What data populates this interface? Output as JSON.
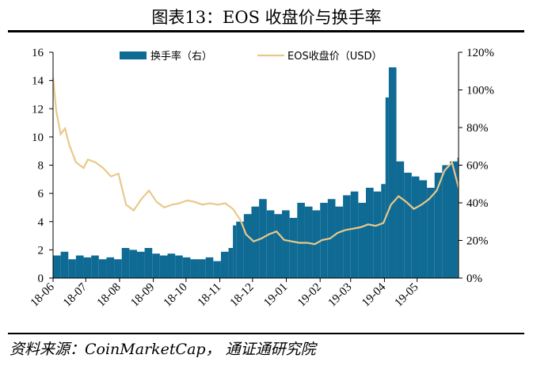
{
  "title": "图表13：EOS 收盘价与换手率",
  "source": "资料来源：CoinMarketCap， 通证通研究院",
  "colors": {
    "turnover": "#0f6a94",
    "price": "#e8c98a",
    "axis": "#000000"
  },
  "chart_data": {
    "type": "bar+line",
    "title": "图表13：EOS 收盘价与换手率",
    "x_tick_labels": [
      "18-06",
      "18-07",
      "18-08",
      "18-09",
      "18-10",
      "18-11",
      "18-12",
      "19-01",
      "19-02",
      "19-03",
      "19-04",
      "19-05"
    ],
    "x_range": [
      "2018-06-01",
      "2019-06-08"
    ],
    "y_left": {
      "min": 0,
      "max": 16,
      "ticks": [
        0,
        2,
        4,
        6,
        8,
        10,
        12,
        14,
        16
      ]
    },
    "y_right": {
      "min": 0,
      "max": 1.2,
      "ticks": [
        "0%",
        "20%",
        "40%",
        "60%",
        "80%",
        "100%",
        "120%"
      ]
    },
    "legend": {
      "placement": "top-center",
      "items": [
        "换手率（右）",
        "EOS收盘价（USD）"
      ]
    },
    "series": [
      {
        "name": "换手率（右）",
        "axis": "right",
        "type": "bar",
        "x": [
          "2018-06-01",
          "2018-06-08",
          "2018-06-15",
          "2018-06-22",
          "2018-06-29",
          "2018-07-06",
          "2018-07-13",
          "2018-07-20",
          "2018-07-27",
          "2018-08-03",
          "2018-08-10",
          "2018-08-17",
          "2018-08-24",
          "2018-08-31",
          "2018-09-07",
          "2018-09-14",
          "2018-09-21",
          "2018-09-28",
          "2018-10-05",
          "2018-10-12",
          "2018-10-19",
          "2018-10-26",
          "2018-11-02",
          "2018-11-09",
          "2018-11-13",
          "2018-11-16",
          "2018-11-23",
          "2018-11-30",
          "2018-12-07",
          "2018-12-14",
          "2018-12-21",
          "2018-12-28",
          "2019-01-04",
          "2019-01-11",
          "2019-01-18",
          "2019-01-25",
          "2019-02-01",
          "2019-02-08",
          "2019-02-15",
          "2019-02-22",
          "2019-03-01",
          "2019-03-08",
          "2019-03-15",
          "2019-03-22",
          "2019-03-29",
          "2019-04-02",
          "2019-04-05",
          "2019-04-12",
          "2019-04-19",
          "2019-04-26",
          "2019-05-03",
          "2019-05-10",
          "2019-05-17",
          "2019-05-24",
          "2019-05-31",
          "2019-06-07"
        ],
        "values": [
          0.12,
          0.14,
          0.1,
          0.12,
          0.11,
          0.12,
          0.1,
          0.11,
          0.1,
          0.16,
          0.15,
          0.14,
          0.16,
          0.13,
          0.12,
          0.13,
          0.12,
          0.11,
          0.1,
          0.1,
          0.11,
          0.09,
          0.14,
          0.16,
          0.28,
          0.3,
          0.34,
          0.38,
          0.42,
          0.36,
          0.34,
          0.36,
          0.32,
          0.4,
          0.38,
          0.36,
          0.4,
          0.42,
          0.38,
          0.44,
          0.46,
          0.4,
          0.48,
          0.46,
          0.5,
          0.96,
          1.12,
          0.62,
          0.56,
          0.54,
          0.52,
          0.48,
          0.56,
          0.6,
          0.62,
          0.64
        ]
      },
      {
        "name": "EOS收盘价（USD）",
        "axis": "left",
        "type": "line",
        "x": [
          "2018-06-01",
          "2018-06-04",
          "2018-06-08",
          "2018-06-12",
          "2018-06-16",
          "2018-06-22",
          "2018-06-29",
          "2018-07-03",
          "2018-07-10",
          "2018-07-17",
          "2018-07-24",
          "2018-07-31",
          "2018-08-07",
          "2018-08-14",
          "2018-08-21",
          "2018-08-28",
          "2018-09-04",
          "2018-09-11",
          "2018-09-18",
          "2018-09-25",
          "2018-10-02",
          "2018-10-09",
          "2018-10-16",
          "2018-10-23",
          "2018-10-30",
          "2018-11-06",
          "2018-11-13",
          "2018-11-20",
          "2018-11-25",
          "2018-12-02",
          "2018-12-09",
          "2018-12-16",
          "2018-12-23",
          "2018-12-30",
          "2019-01-06",
          "2019-01-13",
          "2019-01-20",
          "2019-01-27",
          "2019-02-03",
          "2019-02-10",
          "2019-02-17",
          "2019-02-24",
          "2019-03-03",
          "2019-03-10",
          "2019-03-17",
          "2019-03-24",
          "2019-03-31",
          "2019-04-07",
          "2019-04-14",
          "2019-04-21",
          "2019-04-28",
          "2019-05-05",
          "2019-05-12",
          "2019-05-19",
          "2019-05-26",
          "2019-06-02",
          "2019-06-08"
        ],
        "values": [
          14.2,
          11.8,
          10.2,
          10.6,
          9.4,
          8.2,
          7.8,
          8.4,
          8.2,
          7.8,
          7.2,
          7.4,
          5.2,
          4.8,
          5.6,
          6.2,
          5.4,
          5.0,
          5.2,
          5.3,
          5.5,
          5.4,
          5.2,
          5.3,
          5.2,
          5.3,
          4.9,
          4.1,
          3.1,
          2.6,
          2.8,
          3.1,
          3.3,
          2.7,
          2.6,
          2.5,
          2.5,
          2.4,
          2.7,
          2.8,
          3.2,
          3.4,
          3.5,
          3.6,
          3.8,
          3.7,
          3.9,
          5.2,
          5.8,
          5.4,
          4.9,
          5.2,
          5.6,
          6.2,
          7.6,
          8.2,
          6.4
        ]
      }
    ]
  }
}
